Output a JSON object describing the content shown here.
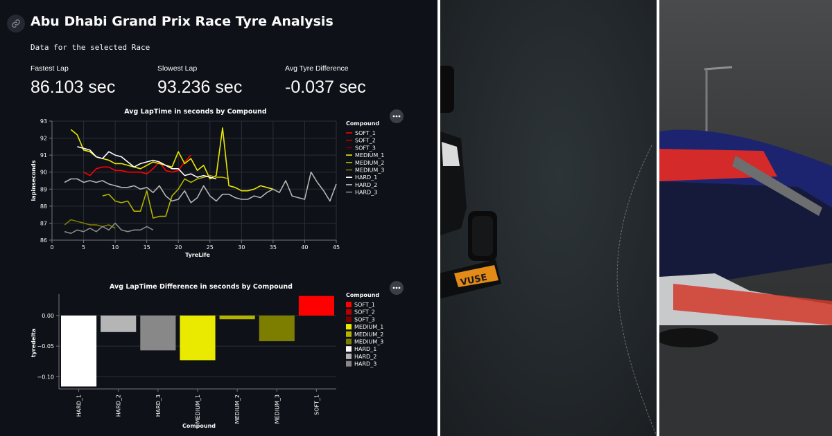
{
  "header": {
    "title": "Abu Dhabi Grand Prix Race Tyre Analysis",
    "subtitle": "Data for the selected Race"
  },
  "metrics": [
    {
      "label": "Fastest Lap",
      "value": "86.103 sec"
    },
    {
      "label": "Slowest Lap",
      "value": "93.236 sec"
    },
    {
      "label": "Avg Tyre Difference",
      "value": "-0.037 sec"
    }
  ],
  "colors": {
    "background": "#0e1117",
    "SOFT_1": "#ff0000",
    "SOFT_2": "#b70000",
    "SOFT_3": "#7a0000",
    "MEDIUM_1": "#eaea00",
    "MEDIUM_2": "#b3b300",
    "MEDIUM_3": "#7d7d00",
    "HARD_1": "#ffffff",
    "HARD_2": "#b5b5b5",
    "HARD_3": "#888888"
  },
  "chart_data": [
    {
      "type": "line",
      "title": "Avg LapTime in seconds by Compound",
      "xlabel": "TyreLife",
      "ylabel": "lapinseconds",
      "xlim": [
        0,
        45
      ],
      "ylim": [
        86,
        93
      ],
      "xticks": [
        0,
        5,
        10,
        15,
        20,
        25,
        30,
        35,
        40,
        45
      ],
      "yticks": [
        86,
        87,
        88,
        89,
        90,
        91,
        92,
        93
      ],
      "legend_title": "Compound",
      "legend_position": "right",
      "grid": true,
      "series": [
        {
          "name": "SOFT_1",
          "x": [
            5,
            6,
            7,
            8,
            9,
            10,
            11,
            12,
            13,
            14,
            15,
            16,
            17,
            18,
            19,
            20,
            21,
            22
          ],
          "y": [
            90.0,
            89.8,
            90.2,
            90.3,
            90.3,
            90.1,
            90.1,
            90.0,
            90.0,
            90.0,
            89.9,
            90.2,
            90.6,
            90.1,
            90.0,
            90.1,
            90.6,
            91.0
          ]
        },
        {
          "name": "SOFT_2",
          "x": [],
          "y": []
        },
        {
          "name": "SOFT_3",
          "x": [],
          "y": []
        },
        {
          "name": "MEDIUM_1",
          "x": [
            3,
            4,
            5,
            6,
            7,
            8,
            9,
            10,
            11,
            12,
            13,
            14,
            15,
            16,
            17,
            18,
            19,
            20,
            21,
            22,
            23,
            24,
            25,
            26,
            27,
            28,
            29,
            30,
            31,
            32,
            33,
            34,
            35
          ],
          "y": [
            92.5,
            92.2,
            91.3,
            91.2,
            90.9,
            90.8,
            90.7,
            90.5,
            90.5,
            90.4,
            90.3,
            90.2,
            90.4,
            90.6,
            90.5,
            90.4,
            90.3,
            91.2,
            90.5,
            90.8,
            90.1,
            90.4,
            89.6,
            89.8,
            92.6,
            89.2,
            89.1,
            88.9,
            88.9,
            89.0,
            89.2,
            89.1,
            89.0
          ]
        },
        {
          "name": "MEDIUM_2",
          "x": [
            8,
            9,
            10,
            11,
            12,
            13,
            14,
            15,
            16,
            17,
            18,
            19,
            20,
            21,
            22,
            23,
            24,
            25,
            26,
            27,
            28
          ],
          "y": [
            88.6,
            88.7,
            88.3,
            88.2,
            88.3,
            87.7,
            87.7,
            88.9,
            87.3,
            87.4,
            87.4,
            88.6,
            89.0,
            89.6,
            89.4,
            89.6,
            89.7,
            89.8,
            89.7,
            89.7,
            89.6
          ]
        },
        {
          "name": "MEDIUM_3",
          "x": [
            2,
            3,
            4,
            5,
            6,
            7,
            8,
            9,
            10
          ],
          "y": [
            86.9,
            87.2,
            87.1,
            87.0,
            86.9,
            86.9,
            86.8,
            86.9,
            86.7
          ]
        },
        {
          "name": "HARD_1",
          "x": [
            4,
            5,
            6,
            7,
            8,
            9,
            10,
            11,
            12,
            13,
            14,
            15,
            16,
            17,
            18,
            19,
            20,
            21,
            22,
            23,
            24,
            25,
            26
          ],
          "y": [
            91.5,
            91.4,
            91.3,
            90.9,
            90.8,
            91.2,
            91.0,
            90.9,
            90.6,
            90.3,
            90.5,
            90.6,
            90.7,
            90.6,
            90.4,
            90.2,
            90.2,
            89.8,
            89.9,
            89.7,
            89.8,
            89.7,
            89.6
          ]
        },
        {
          "name": "HARD_2",
          "x": [
            2,
            3,
            4,
            5,
            6,
            7,
            8,
            9,
            10,
            11,
            12,
            13,
            14,
            15,
            16,
            17,
            18,
            19,
            20,
            21,
            22,
            23,
            24,
            25,
            26,
            27,
            28,
            29,
            30,
            31,
            32,
            33,
            34,
            35,
            36,
            37,
            38,
            39,
            40,
            41,
            42,
            43,
            44,
            45
          ],
          "y": [
            89.4,
            89.6,
            89.6,
            89.4,
            89.5,
            89.4,
            89.5,
            89.3,
            89.2,
            89.1,
            89.1,
            89.2,
            89.0,
            89.1,
            88.8,
            89.2,
            88.6,
            88.3,
            88.4,
            88.9,
            88.2,
            88.5,
            89.2,
            88.6,
            88.3,
            88.7,
            88.7,
            88.5,
            88.4,
            88.4,
            88.6,
            88.5,
            88.8,
            89.0,
            88.8,
            89.5,
            88.6,
            88.5,
            88.4,
            90.0,
            89.4,
            88.9,
            88.3,
            89.3
          ]
        },
        {
          "name": "HARD_3",
          "x": [
            2,
            3,
            4,
            5,
            6,
            7,
            8,
            9,
            10,
            11,
            12,
            13,
            14,
            15,
            16
          ],
          "y": [
            86.5,
            86.4,
            86.6,
            86.5,
            86.7,
            86.5,
            86.8,
            86.6,
            87.0,
            86.6,
            86.5,
            86.6,
            86.6,
            86.8,
            86.6
          ]
        }
      ]
    },
    {
      "type": "bar",
      "title": "Avg LapTime Difference in seconds by Compound",
      "xlabel": "Compound",
      "ylabel": "tyredelta",
      "ylim": [
        -0.12,
        0.035
      ],
      "yticks": [
        0.0,
        -0.05,
        -0.1
      ],
      "ytick_labels": [
        "0.00",
        "−0.05",
        "−0.10"
      ],
      "legend_title": "Compound",
      "legend_position": "right",
      "grid": true,
      "categories": [
        "HARD_1",
        "HARD_2",
        "HARD_3",
        "MEDIUM_1",
        "MEDIUM_2",
        "MEDIUM_3",
        "SOFT_1"
      ],
      "values": [
        -0.116,
        -0.027,
        -0.057,
        -0.073,
        -0.006,
        -0.042,
        0.032
      ],
      "legend": [
        "SOFT_1",
        "SOFT_2",
        "SOFT_3",
        "MEDIUM_1",
        "MEDIUM_2",
        "MEDIUM_3",
        "HARD_1",
        "HARD_2",
        "HARD_3"
      ]
    }
  ]
}
